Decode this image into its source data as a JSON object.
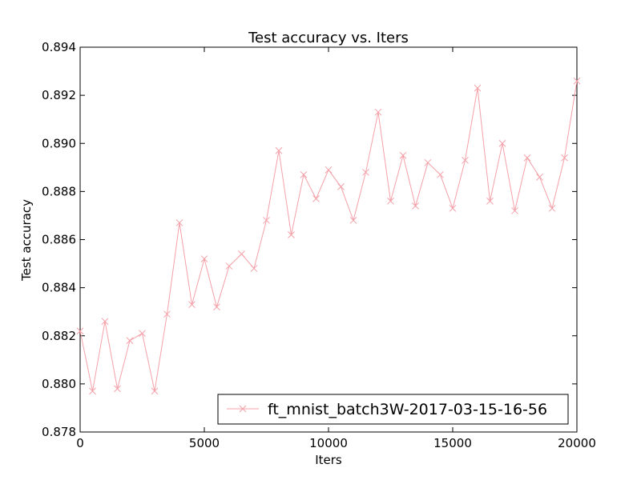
{
  "chart_data": {
    "type": "line",
    "title": "Test accuracy  vs. Iters",
    "xlabel": "Iters",
    "ylabel": "Test accuracy",
    "xlim": [
      0,
      20000
    ],
    "ylim": [
      0.878,
      0.894
    ],
    "xticks": [
      0,
      5000,
      10000,
      15000,
      20000
    ],
    "yticks": [
      0.878,
      0.88,
      0.882,
      0.884,
      0.886,
      0.888,
      0.89,
      0.892,
      0.894
    ],
    "xtick_labels": [
      "0",
      "5000",
      "10000",
      "15000",
      "20000"
    ],
    "ytick_labels": [
      "0.878",
      "0.880",
      "0.882",
      "0.884",
      "0.886",
      "0.888",
      "0.890",
      "0.892",
      "0.894"
    ],
    "grid": false,
    "legend_position": "lower-right",
    "series": [
      {
        "name": "ft_mnist_batch3W-2017-03-15-16-56",
        "color": "#f4a0a8",
        "marker": "x",
        "x": [
          0,
          500,
          1000,
          1500,
          2000,
          2500,
          3000,
          3500,
          4000,
          4500,
          5000,
          5500,
          6000,
          6500,
          7000,
          7500,
          8000,
          8500,
          9000,
          9500,
          10000,
          10500,
          11000,
          11500,
          12000,
          12500,
          13000,
          13500,
          14000,
          14500,
          15000,
          15500,
          16000,
          16500,
          17000,
          17500,
          18000,
          18500,
          19000,
          19500,
          20000
        ],
        "y": [
          0.8822,
          0.8797,
          0.8826,
          0.8798,
          0.8818,
          0.8821,
          0.8797,
          0.8829,
          0.8867,
          0.8833,
          0.8852,
          0.8832,
          0.8849,
          0.8854,
          0.8848,
          0.8868,
          0.8897,
          0.8862,
          0.8887,
          0.8877,
          0.8889,
          0.8882,
          0.8868,
          0.8888,
          0.8913,
          0.8876,
          0.8895,
          0.8874,
          0.8892,
          0.8887,
          0.8873,
          0.8893,
          0.8923,
          0.8876,
          0.89,
          0.8872,
          0.8894,
          0.8886,
          0.8873,
          0.8894,
          0.8926
        ]
      }
    ]
  }
}
